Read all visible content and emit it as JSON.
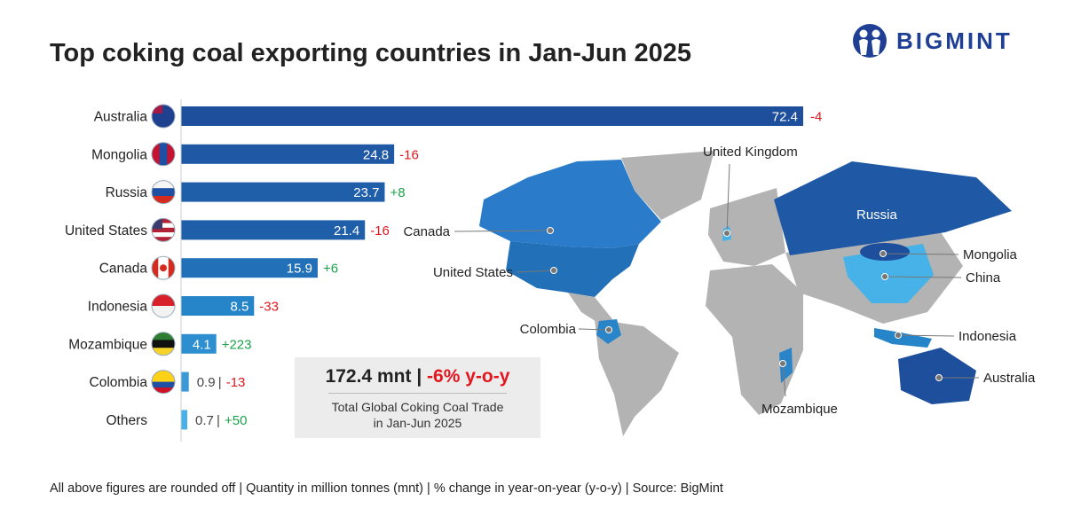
{
  "title": "Top coking coal exporting countries in Jan-Jun 2025",
  "logo_text": "BIGMINT",
  "chart_data": {
    "type": "bar",
    "orientation": "horizontal",
    "title": "Top coking coal exporting countries in Jan-Jun 2025",
    "unit": "mnt",
    "categories": [
      "Australia",
      "Mongolia",
      "Russia",
      "United States",
      "Canada",
      "Indonesia",
      "Mozambique",
      "Colombia",
      "Others"
    ],
    "values": [
      72.4,
      24.8,
      23.7,
      21.4,
      15.9,
      8.5,
      4.1,
      0.9,
      0.7
    ],
    "yoy_change": [
      "-4",
      "-16",
      "+8",
      "-16",
      "+6",
      "-33",
      "+223",
      "-13",
      "+50"
    ],
    "bar_colors": [
      "#1e4f9c",
      "#1f59a6",
      "#1f5ea9",
      "#1f5ea9",
      "#2270b8",
      "#2684c8",
      "#2e8fd0",
      "#3a9ad8",
      "#46b2e8"
    ],
    "xlim": [
      0,
      72.4
    ],
    "grid": false
  },
  "colors": {
    "positive": "#1aa34a",
    "negative": "#e3161e",
    "brand": "#1f3f95"
  },
  "map": {
    "labels": [
      "United Kingdom",
      "Canada",
      "United States",
      "Colombia",
      "Mozambique",
      "Russia",
      "Mongolia",
      "China",
      "Indonesia",
      "Australia"
    ]
  },
  "summary": {
    "total": "172.4 mnt",
    "separator": "|",
    "change": "-6% y-o-y",
    "line1": "Total Global Coking Coal Trade",
    "line2": "in Jan-Jun 2025"
  },
  "footer": "All above figures are rounded off | Quantity in million tonnes (mnt) | % change in year-on-year (y-o-y) | Source: BigMint"
}
